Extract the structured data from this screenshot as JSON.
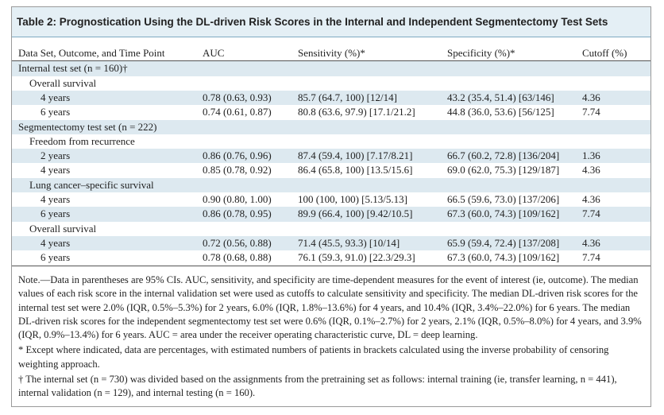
{
  "title": "Table 2: Prognostication Using the DL-driven Risk Scores in the Internal and Independent Segmentectomy Test Sets",
  "table": {
    "columns": [
      "Data Set, Outcome, and Time Point",
      "AUC",
      "Sensitivity (%)*",
      "Specificity (%)*",
      "Cutoff (%)"
    ],
    "rows": [
      {
        "label": "Internal test set (n = 160)†",
        "indent": 0
      },
      {
        "label": "Overall survival",
        "indent": 1
      },
      {
        "label": "4 years",
        "indent": 2,
        "cells": [
          "0.78 (0.63, 0.93)",
          "85.7 (64.7, 100) [12/14]",
          "43.2 (35.4, 51.4) [63/146]",
          "4.36"
        ]
      },
      {
        "label": "6 years",
        "indent": 2,
        "cells": [
          "0.74 (0.61, 0.87)",
          "80.8 (63.6, 97.9) [17.1/21.2]",
          "44.8 (36.0, 53.6) [56/125]",
          "7.74"
        ]
      },
      {
        "label": "Segmentectomy test set (n = 222)",
        "indent": 0
      },
      {
        "label": "Freedom from recurrence",
        "indent": 1
      },
      {
        "label": "2 years",
        "indent": 2,
        "cells": [
          "0.86 (0.76, 0.96)",
          "87.4 (59.4, 100) [7.17/8.21]",
          "66.7 (60.2, 72.8) [136/204]",
          "1.36"
        ]
      },
      {
        "label": "4 years",
        "indent": 2,
        "cells": [
          "0.85 (0.78, 0.92)",
          "86.4 (65.8, 100) [13.5/15.6]",
          "69.0 (62.0, 75.3) [129/187]",
          "4.36"
        ]
      },
      {
        "label": "Lung cancer–specific survival",
        "indent": 1
      },
      {
        "label": "4 years",
        "indent": 2,
        "cells": [
          "0.90 (0.80, 1.00)",
          "100 (100, 100) [5.13/5.13]",
          "66.5 (59.6, 73.0) [137/206]",
          "4.36"
        ]
      },
      {
        "label": "6 years",
        "indent": 2,
        "cells": [
          "0.86 (0.78, 0.95)",
          "89.9 (66.4, 100) [9.42/10.5]",
          "67.3 (60.0, 74.3) [109/162]",
          "7.74"
        ]
      },
      {
        "label": "Overall survival",
        "indent": 1
      },
      {
        "label": "4 years",
        "indent": 2,
        "cells": [
          "0.72 (0.56, 0.88)",
          "71.4 (45.5, 93.3) [10/14]",
          "65.9 (59.4, 72.4) [137/208]",
          "4.36"
        ]
      },
      {
        "label": "6 years",
        "indent": 2,
        "cells": [
          "0.78 (0.68, 0.88)",
          "76.1 (59.3, 91.0) [22.3/29.3]",
          "67.3 (60.0, 74.3) [109/162]",
          "7.74"
        ]
      }
    ]
  },
  "notes": [
    "Note.—Data in parentheses are 95% CIs. AUC, sensitivity, and specificity are time-dependent measures for the event of interest (ie, outcome). The median values of each risk score in the internal validation set were used as cutoffs to calculate sensitivity and specificity. The median DL-driven risk scores for the internal test set were 2.0% (IQR, 0.5%–5.3%) for 2 years, 6.0% (IQR, 1.8%–13.6%) for 4 years, and 10.4% (IQR, 3.4%–22.0%) for 6 years. The median DL-driven risk scores for the independent segmentectomy test set were 0.6% (IQR, 0.1%–2.7%) for 2 years, 2.1% (IQR, 0.5%–8.0%) for 4 years, and 3.9% (IQR, 0.9%–13.4%) for 6 years. AUC = area under the receiver operating characteristic curve, DL = deep learning.",
    "* Except where indicated, data are percentages, with estimated numbers of patients in brackets calculated using the inverse probability of censoring weighting approach.",
    "† The internal set (n = 730) was divided based on the assignments from the pretraining set as follows: internal training (ie, transfer learning, n = 441), internal validation (n = 129), and internal testing (n = 160)."
  ]
}
